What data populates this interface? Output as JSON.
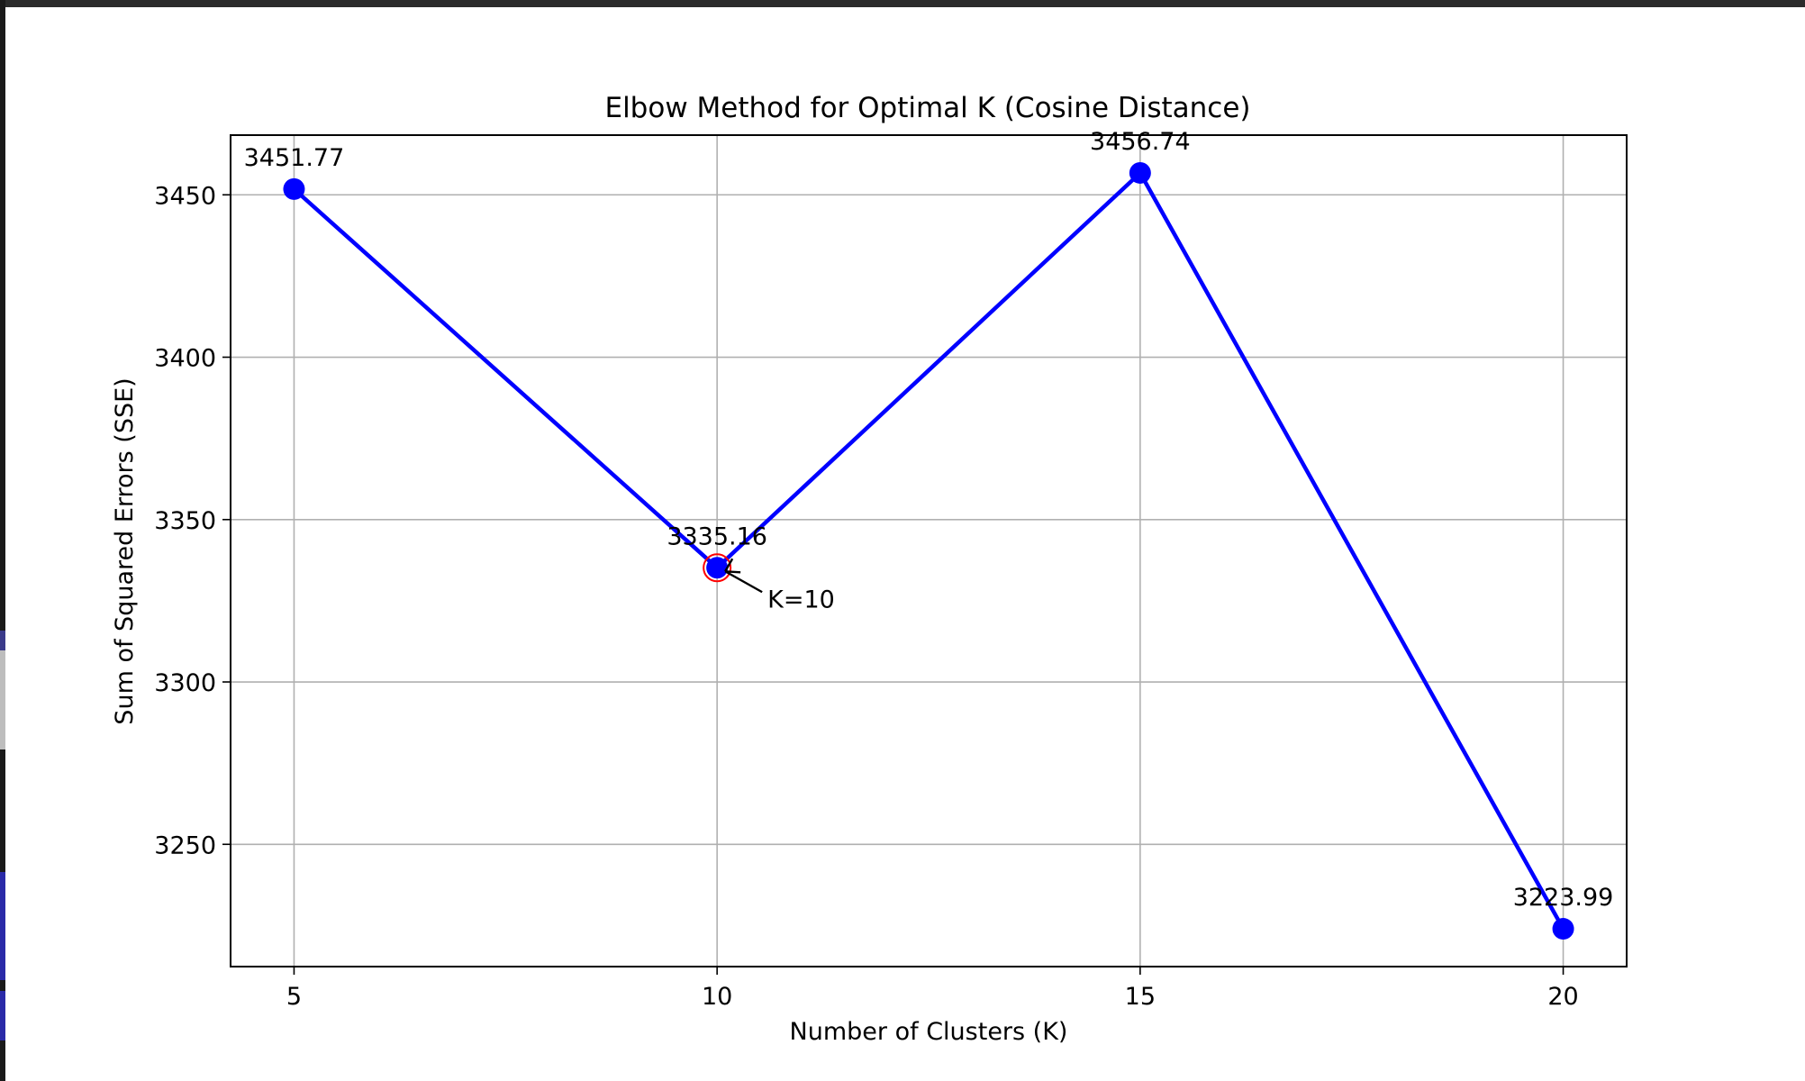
{
  "chart_data": {
    "type": "line",
    "title": "Elbow Method for Optimal K (Cosine Distance)",
    "xlabel": "Number of Clusters (K)",
    "ylabel": "Sum of Squared Errors (SSE)",
    "x": [
      5,
      10,
      15,
      20
    ],
    "series": [
      {
        "values": [
          3451.77,
          3335.16,
          3456.74,
          3223.99
        ],
        "color": "#0000ff",
        "marker": "circle"
      }
    ],
    "point_labels": [
      "3451.77",
      "3335.16",
      "3456.74",
      "3223.99"
    ],
    "xticks": [
      5,
      10,
      15,
      20
    ],
    "xtick_labels": [
      "5",
      "10",
      "15",
      "20"
    ],
    "yticks": [
      3250,
      3300,
      3350,
      3400,
      3450
    ],
    "ytick_labels": [
      "3250",
      "3300",
      "3350",
      "3400",
      "3450"
    ],
    "xlim": [
      4.25,
      20.75
    ],
    "ylim": [
      3212.35,
      3468.38
    ],
    "grid": true,
    "highlight": {
      "x": 10,
      "y": 3335.16,
      "color": "#ff0000"
    },
    "annotation": {
      "text": "K=10",
      "x": 10,
      "y": 3335.16
    }
  }
}
